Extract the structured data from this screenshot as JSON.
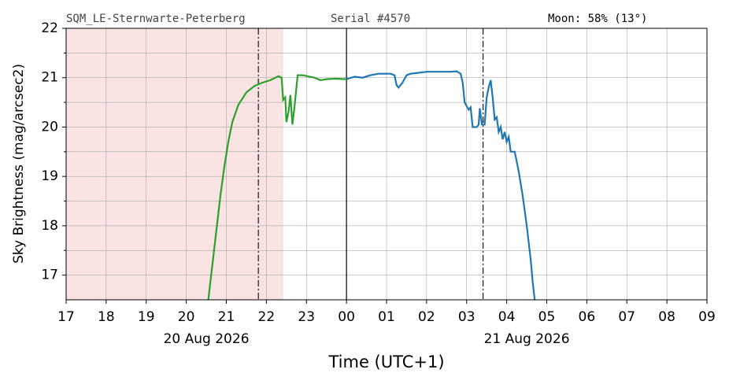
{
  "chart_data": {
    "type": "line",
    "header": {
      "site": "SQM_LE-Sternwarte-Peterberg",
      "serial": "Serial #4570",
      "moon": "Moon: 58% (13°)"
    },
    "ylabel": "Sky Brightness (mag/arcsec2)",
    "xlabel": "Time (UTC+1)",
    "date_labels": [
      {
        "x": 20,
        "text": "20 Aug 2026"
      },
      {
        "x": 28,
        "text": "21 Aug 2026"
      }
    ],
    "xlim": [
      17,
      33
    ],
    "ylim": [
      16.5,
      22
    ],
    "xticks": [
      17,
      18,
      19,
      20,
      21,
      22,
      23,
      {
        "value": 24,
        "label": "00"
      },
      {
        "value": 25,
        "label": "01"
      },
      {
        "value": 26,
        "label": "02"
      },
      {
        "value": 27,
        "label": "03"
      },
      {
        "value": 28,
        "label": "04"
      },
      {
        "value": 29,
        "label": "05"
      },
      {
        "value": 30,
        "label": "06"
      },
      {
        "value": 31,
        "label": "07"
      },
      {
        "value": 32,
        "label": "08"
      },
      {
        "value": 33,
        "label": "09"
      }
    ],
    "yticks": [
      17,
      18,
      19,
      20,
      21,
      22
    ],
    "grid": true,
    "shaded_span": {
      "range": [
        17,
        22.42
      ],
      "color": "#f9e3e3"
    },
    "dashed_vlines": [
      21.8,
      27.41
    ],
    "solid_vlines": [
      24
    ],
    "series": [
      {
        "color": "#2ca02c",
        "x": [
          20.55,
          20.65,
          20.75,
          20.85,
          20.95,
          21.05,
          21.15,
          21.3,
          21.5,
          21.7,
          21.9,
          22.1,
          22.3,
          22.38,
          22.42,
          22.47,
          22.5,
          22.55,
          22.6,
          22.65,
          22.7,
          22.78,
          22.9,
          23.2,
          23.35,
          23.5,
          23.7,
          24
        ],
        "values": [
          16.5,
          17.2,
          17.9,
          18.6,
          19.2,
          19.7,
          20.1,
          20.45,
          20.7,
          20.83,
          20.9,
          20.95,
          21.03,
          21.0,
          20.55,
          20.6,
          20.1,
          20.3,
          20.65,
          20.05,
          20.4,
          21.05,
          21.05,
          21.0,
          20.95,
          20.97,
          20.98,
          20.97
        ]
      },
      {
        "color": "#1f77b4",
        "x": [
          24,
          24.2,
          24.4,
          24.6,
          24.8,
          25.1,
          25.2,
          25.25,
          25.3,
          25.4,
          25.5,
          25.6,
          25.8,
          26.0,
          26.3,
          26.6,
          26.75,
          26.85,
          26.9,
          26.95,
          27.05,
          27.1,
          27.15,
          27.25,
          27.3,
          27.33,
          27.38,
          27.45,
          27.5,
          27.55,
          27.6,
          27.65,
          27.7,
          27.75,
          27.8,
          27.85,
          27.9,
          27.95,
          28.0,
          28.05,
          28.1,
          28.2,
          28.3,
          28.4,
          28.5,
          28.6,
          28.65,
          28.7
        ],
        "values": [
          20.97,
          21.02,
          21.0,
          21.05,
          21.08,
          21.08,
          21.05,
          20.85,
          20.8,
          20.9,
          21.05,
          21.08,
          21.1,
          21.12,
          21.12,
          21.12,
          21.13,
          21.08,
          20.9,
          20.5,
          20.35,
          20.4,
          20.0,
          20.0,
          20.05,
          20.38,
          20.05,
          20.05,
          20.6,
          20.8,
          20.95,
          20.6,
          20.15,
          20.2,
          19.9,
          20.0,
          19.75,
          19.9,
          19.7,
          19.8,
          19.5,
          19.5,
          19.1,
          18.6,
          18.0,
          17.3,
          16.85,
          16.5
        ]
      }
    ]
  }
}
